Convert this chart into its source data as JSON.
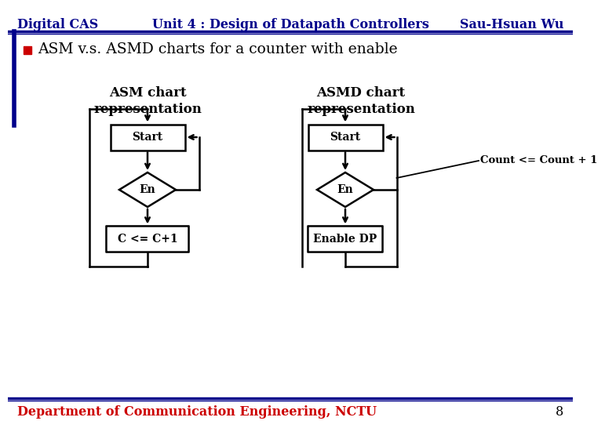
{
  "header_left": "Digital CAS",
  "header_center": "Unit 4 : Design of Datapath Controllers",
  "header_right": "Sau-Hsuan Wu",
  "header_color": "#00008B",
  "header_fontsize": 11.5,
  "bullet_text": "ASM v.s. ASMD charts for a counter with enable",
  "bullet_color": "#000000",
  "bullet_marker_color": "#CC0000",
  "asm_label": "ASM chart\nrepresentation",
  "asmd_label": "ASMD chart\nrepresentation",
  "footer_text": "Department of Communication Engineering, NCTU",
  "footer_color": "#CC0000",
  "footer_page": "8",
  "background_color": "#FFFFFF",
  "count_label": "Count <= Count + 1"
}
